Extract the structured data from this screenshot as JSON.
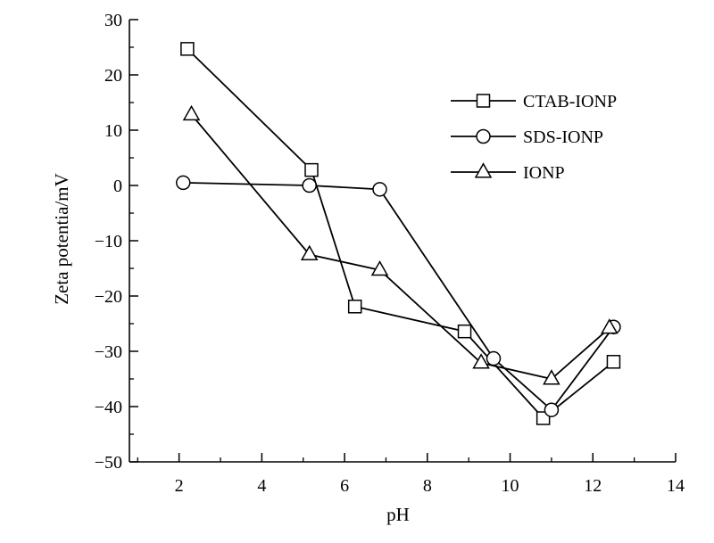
{
  "chart_data": {
    "type": "line",
    "xlabel": "pH",
    "ylabel": "Zeta potentia/mV",
    "xlim": [
      0.8,
      14
    ],
    "ylim": [
      -50,
      30
    ],
    "x_ticks": [
      "2",
      "4",
      "6",
      "8",
      "10",
      "12",
      "14"
    ],
    "y_ticks": [
      "30",
      "20",
      "10",
      "0",
      "−10",
      "−20",
      "−30",
      "−40",
      "−50"
    ],
    "grid": false,
    "legend_position": "top-right",
    "series": [
      {
        "name": "CTAB-IONP",
        "marker": "square",
        "points": [
          [
            2.2,
            24.7
          ],
          [
            5.2,
            2.8
          ],
          [
            6.25,
            -21.9
          ],
          [
            8.9,
            -26.4
          ],
          [
            10.8,
            -42.1
          ],
          [
            12.5,
            -31.9
          ]
        ]
      },
      {
        "name": "SDS-IONP",
        "marker": "circle",
        "points": [
          [
            2.1,
            0.5
          ],
          [
            5.15,
            0.0
          ],
          [
            6.85,
            -0.7
          ],
          [
            9.6,
            -31.3
          ],
          [
            11.0,
            -40.6
          ],
          [
            12.5,
            -25.6
          ]
        ]
      },
      {
        "name": "IONP",
        "marker": "triangle",
        "points": [
          [
            2.3,
            12.8
          ],
          [
            5.15,
            -12.5
          ],
          [
            6.85,
            -15.3
          ],
          [
            9.3,
            -32.1
          ],
          [
            11.0,
            -35.0
          ],
          [
            12.4,
            -25.8
          ]
        ]
      }
    ]
  }
}
